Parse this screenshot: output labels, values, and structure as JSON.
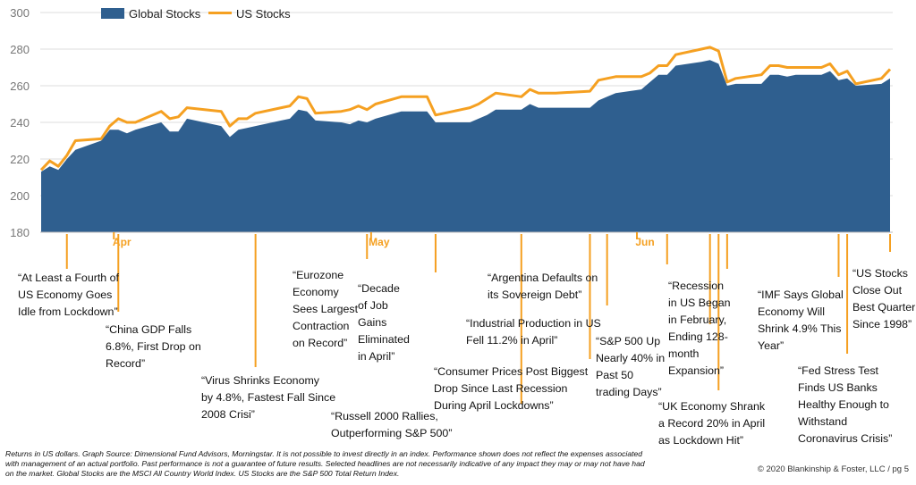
{
  "colors": {
    "global": "#2f5f8f",
    "us": "#f5a021",
    "axis_text": "#777777",
    "month_text": "#f5a021",
    "grid": "#dddddd"
  },
  "chart_data": {
    "type": "area",
    "ylim": [
      180,
      300
    ],
    "yticks": [
      "180",
      "200",
      "220",
      "240",
      "260",
      "280",
      "300"
    ],
    "x_range": [
      "2020-03-23",
      "2020-06-30"
    ],
    "months": [
      {
        "label": "Apr",
        "date": "2020-04-01"
      },
      {
        "label": "May",
        "date": "2020-05-01"
      },
      {
        "label": "Jun",
        "date": "2020-06-01"
      }
    ],
    "legend": {
      "placement": "top-left"
    },
    "series": [
      {
        "name": "Global Stocks",
        "kind": "area",
        "points": [
          [
            "2020-03-23",
            213
          ],
          [
            "2020-03-24",
            216
          ],
          [
            "2020-03-25",
            214
          ],
          [
            "2020-03-26",
            220
          ],
          [
            "2020-03-27",
            225
          ],
          [
            "2020-03-30",
            230
          ],
          [
            "2020-03-31",
            236
          ],
          [
            "2020-04-01",
            236
          ],
          [
            "2020-04-02",
            234
          ],
          [
            "2020-04-03",
            236
          ],
          [
            "2020-04-06",
            240
          ],
          [
            "2020-04-07",
            235
          ],
          [
            "2020-04-08",
            235
          ],
          [
            "2020-04-09",
            242
          ],
          [
            "2020-04-13",
            238
          ],
          [
            "2020-04-14",
            232
          ],
          [
            "2020-04-15",
            236
          ],
          [
            "2020-04-16",
            237
          ],
          [
            "2020-04-17",
            238
          ],
          [
            "2020-04-20",
            241
          ],
          [
            "2020-04-21",
            242
          ],
          [
            "2020-04-22",
            247
          ],
          [
            "2020-04-23",
            246
          ],
          [
            "2020-04-24",
            241
          ],
          [
            "2020-04-27",
            240
          ],
          [
            "2020-04-28",
            239
          ],
          [
            "2020-04-29",
            241
          ],
          [
            "2020-04-30",
            240
          ],
          [
            "2020-05-01",
            242
          ],
          [
            "2020-05-04",
            246
          ],
          [
            "2020-05-05",
            246
          ],
          [
            "2020-05-06",
            246
          ],
          [
            "2020-05-07",
            246
          ],
          [
            "2020-05-08",
            240
          ],
          [
            "2020-05-11",
            240
          ],
          [
            "2020-05-12",
            240
          ],
          [
            "2020-05-13",
            242
          ],
          [
            "2020-05-14",
            244
          ],
          [
            "2020-05-15",
            247
          ],
          [
            "2020-05-18",
            247
          ],
          [
            "2020-05-19",
            250
          ],
          [
            "2020-05-20",
            248
          ],
          [
            "2020-05-21",
            248
          ],
          [
            "2020-05-22",
            248
          ],
          [
            "2020-05-26",
            248
          ],
          [
            "2020-05-27",
            252
          ],
          [
            "2020-05-28",
            254
          ],
          [
            "2020-05-29",
            256
          ],
          [
            "2020-06-01",
            258
          ],
          [
            "2020-06-02",
            262
          ],
          [
            "2020-06-03",
            266
          ],
          [
            "2020-06-04",
            266
          ],
          [
            "2020-06-05",
            271
          ],
          [
            "2020-06-08",
            273
          ],
          [
            "2020-06-09",
            274
          ],
          [
            "2020-06-10",
            272
          ],
          [
            "2020-06-11",
            260
          ],
          [
            "2020-06-12",
            261
          ],
          [
            "2020-06-15",
            261
          ],
          [
            "2020-06-16",
            266
          ],
          [
            "2020-06-17",
            266
          ],
          [
            "2020-06-18",
            265
          ],
          [
            "2020-06-19",
            266
          ],
          [
            "2020-06-22",
            266
          ],
          [
            "2020-06-23",
            268
          ],
          [
            "2020-06-24",
            263
          ],
          [
            "2020-06-25",
            264
          ],
          [
            "2020-06-26",
            260
          ],
          [
            "2020-06-29",
            261
          ],
          [
            "2020-06-30",
            264
          ]
        ]
      },
      {
        "name": "US Stocks",
        "kind": "line",
        "points": [
          [
            "2020-03-23",
            214
          ],
          [
            "2020-03-24",
            219
          ],
          [
            "2020-03-25",
            216
          ],
          [
            "2020-03-26",
            222
          ],
          [
            "2020-03-27",
            230
          ],
          [
            "2020-03-30",
            231
          ],
          [
            "2020-03-31",
            238
          ],
          [
            "2020-04-01",
            242
          ],
          [
            "2020-04-02",
            240
          ],
          [
            "2020-04-03",
            240
          ],
          [
            "2020-04-06",
            246
          ],
          [
            "2020-04-07",
            242
          ],
          [
            "2020-04-08",
            243
          ],
          [
            "2020-04-09",
            248
          ],
          [
            "2020-04-13",
            246
          ],
          [
            "2020-04-14",
            238
          ],
          [
            "2020-04-15",
            242
          ],
          [
            "2020-04-16",
            242
          ],
          [
            "2020-04-17",
            245
          ],
          [
            "2020-04-20",
            248
          ],
          [
            "2020-04-21",
            249
          ],
          [
            "2020-04-22",
            254
          ],
          [
            "2020-04-23",
            253
          ],
          [
            "2020-04-24",
            245
          ],
          [
            "2020-04-27",
            246
          ],
          [
            "2020-04-28",
            247
          ],
          [
            "2020-04-29",
            249
          ],
          [
            "2020-04-30",
            247
          ],
          [
            "2020-05-01",
            250
          ],
          [
            "2020-05-04",
            254
          ],
          [
            "2020-05-05",
            254
          ],
          [
            "2020-05-06",
            254
          ],
          [
            "2020-05-07",
            254
          ],
          [
            "2020-05-08",
            244
          ],
          [
            "2020-05-11",
            247
          ],
          [
            "2020-05-12",
            248
          ],
          [
            "2020-05-13",
            250
          ],
          [
            "2020-05-14",
            253
          ],
          [
            "2020-05-15",
            256
          ],
          [
            "2020-05-18",
            254
          ],
          [
            "2020-05-19",
            258
          ],
          [
            "2020-05-20",
            256
          ],
          [
            "2020-05-21",
            256
          ],
          [
            "2020-05-22",
            256
          ],
          [
            "2020-05-26",
            257
          ],
          [
            "2020-05-27",
            263
          ],
          [
            "2020-05-28",
            264
          ],
          [
            "2020-05-29",
            265
          ],
          [
            "2020-06-01",
            265
          ],
          [
            "2020-06-02",
            267
          ],
          [
            "2020-06-03",
            271
          ],
          [
            "2020-06-04",
            271
          ],
          [
            "2020-06-05",
            277
          ],
          [
            "2020-06-08",
            280
          ],
          [
            "2020-06-09",
            281
          ],
          [
            "2020-06-10",
            279
          ],
          [
            "2020-06-11",
            262
          ],
          [
            "2020-06-12",
            264
          ],
          [
            "2020-06-15",
            266
          ],
          [
            "2020-06-16",
            271
          ],
          [
            "2020-06-17",
            271
          ],
          [
            "2020-06-18",
            270
          ],
          [
            "2020-06-19",
            270
          ],
          [
            "2020-06-22",
            270
          ],
          [
            "2020-06-23",
            272
          ],
          [
            "2020-06-24",
            266
          ],
          [
            "2020-06-25",
            268
          ],
          [
            "2020-06-26",
            261
          ],
          [
            "2020-06-29",
            264
          ],
          [
            "2020-06-30",
            269
          ]
        ]
      }
    ],
    "annotations": [
      {
        "date": "2020-03-26",
        "text": "“At Least a Fourth of\nUS Economy Goes\nIdle from Lockdown”"
      },
      {
        "date": "2020-04-01",
        "text": "“China GDP Falls\n6.8%, First Drop on\nRecord”"
      },
      {
        "date": "2020-04-17",
        "text": "“Virus Shrinks Economy\nby 4.8%, Fastest Fall Since\n2008 Crisi”"
      },
      {
        "date": "2020-04-30",
        "text": "“Eurozone\nEconomy\nSees Largest\nContraction\non Record”"
      },
      {
        "date": "2020-05-08",
        "text": "“Decade\nof Job\nGains\nEliminated\nin April”"
      },
      {
        "date": "2020-05-18",
        "text": "“Russell 2000 Rallies,\nOutperforming S&P 500”"
      },
      {
        "date": "2020-05-26",
        "text": "“Consumer Prices Post Biggest\nDrop Since Last Recession\nDuring April Lockdowns”"
      },
      {
        "date": "2020-05-28",
        "text": "“Industrial Production in US\nFell 11.2% in April”"
      },
      {
        "date": "2020-06-04",
        "text": "“Argentina Defaults on\nits Sovereign Debt”"
      },
      {
        "date": "2020-06-09",
        "text": "“S&P 500 Up\nNearly 40% in\nPast 50\ntrading Days”"
      },
      {
        "date": "2020-06-10",
        "text": "“UK Economy Shrank\na Record 20% in April\nas Lockdown Hit”"
      },
      {
        "date": "2020-06-11",
        "text": "“Recession\nin US Began\nin February,\nEnding 128-\nmonth\nExpansion”"
      },
      {
        "date": "2020-06-24",
        "text": "“IMF Says Global\nEconomy Will\nShrink 4.9% This\nYear”"
      },
      {
        "date": "2020-06-25",
        "text": "“Fed Stress Test\nFinds US Banks\nHealthy Enough to\nWithstand\nCoronavirus Crisis”"
      },
      {
        "date": "2020-06-30",
        "text": "“US Stocks\nClose Out\nBest Quarter\nSince 1998”"
      }
    ]
  },
  "footnote": "Returns in US dollars. Graph Source: Dimensional Fund Advisors, Morningstar. It is not possible to invest directly in an index. Performance shown does not reflect the expenses associated\nwith management of an actual portfolio. Past performance is not a guarantee of future results. Selected headlines are not necessarily indicative of any impact they may or may not have had\non the market. Global Stocks are the MSCI All Country World Index. US Stocks are the S&P 500 Total Return Index.",
  "copyright": "© 2020 Blankinship & Foster, LLC / pg 5"
}
